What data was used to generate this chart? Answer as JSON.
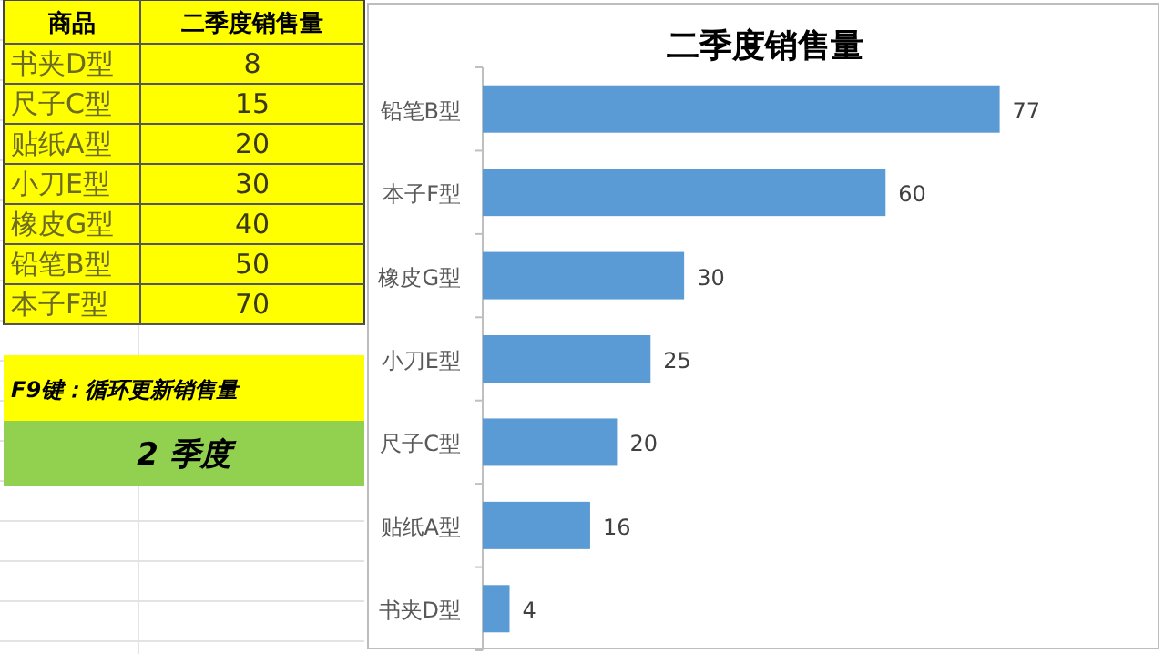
{
  "chart_data": [
    {
      "type": "other",
      "categories": [
        "书夹D型",
        "尺子C型",
        "贴纸A型",
        "小刀E型",
        "橡皮G型",
        "铅笔B型",
        "本子F型"
      ],
      "values": [
        8,
        15,
        20,
        30,
        40,
        50,
        70
      ],
      "data_labels": true,
      "color": "#ffff00",
      "annotations": [
        "商品",
        "二季度销售量",
        "F9键：循环更新销售量",
        "2 季度"
      ]
    },
    {
      "type": "bar",
      "orientation": "horizontal",
      "title": "二季度销售量",
      "categories": [
        "铅笔B型",
        "本子F型",
        "橡皮G型",
        "小刀E型",
        "尺子C型",
        "贴纸A型",
        "书夹D型"
      ],
      "values": [
        77,
        60,
        30,
        25,
        20,
        16,
        4
      ],
      "color": "#5b9bd5",
      "data_labels": true
    }
  ]
}
